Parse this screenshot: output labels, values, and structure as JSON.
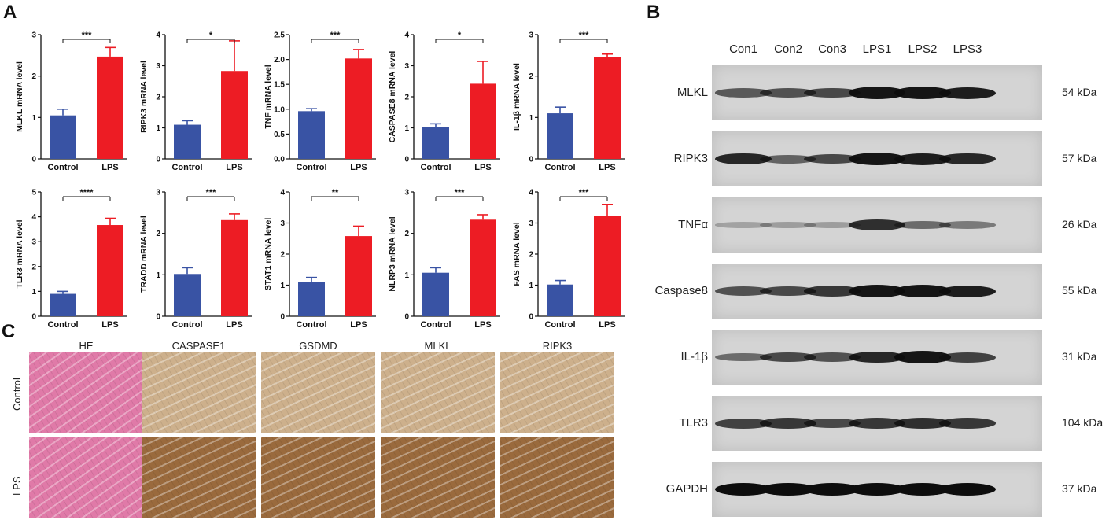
{
  "panels": {
    "a": "A",
    "b": "B",
    "c": "C"
  },
  "colors": {
    "control": "#3953a4",
    "lps": "#ed1c24",
    "he": "#e07aa8",
    "ihc_control": "#cdb08c",
    "ihc_lps": "#9a6a3d"
  },
  "categories": [
    "Control",
    "LPS"
  ],
  "chart_data": [
    {
      "type": "bar",
      "ylabel": "MLKL mRNA level",
      "ylim": [
        0,
        3
      ],
      "yticks": [
        "0",
        "1",
        "2",
        "3"
      ],
      "categories": [
        "Control",
        "LPS"
      ],
      "values": [
        1.05,
        2.47
      ],
      "errors": [
        0.15,
        0.22
      ],
      "significance": "***"
    },
    {
      "type": "bar",
      "ylabel": "RIPK3 mRNA level",
      "ylim": [
        0,
        4
      ],
      "yticks": [
        "0",
        "1",
        "2",
        "3",
        "4"
      ],
      "categories": [
        "Control",
        "LPS"
      ],
      "values": [
        1.1,
        2.83
      ],
      "errors": [
        0.13,
        0.97
      ],
      "significance": "*"
    },
    {
      "type": "bar",
      "ylabel": "TNF mRNA level",
      "ylim": [
        0,
        2.5
      ],
      "yticks": [
        "0.0",
        "0.5",
        "1.0",
        "1.5",
        "2.0",
        "2.5"
      ],
      "categories": [
        "Control",
        "LPS"
      ],
      "values": [
        0.96,
        2.02
      ],
      "errors": [
        0.05,
        0.18
      ],
      "significance": "***"
    },
    {
      "type": "bar",
      "ylabel": "CASPASE8 mRNA level",
      "ylim": [
        0,
        4
      ],
      "yticks": [
        "0",
        "1",
        "2",
        "3",
        "4"
      ],
      "categories": [
        "Control",
        "LPS"
      ],
      "values": [
        1.03,
        2.42
      ],
      "errors": [
        0.1,
        0.72
      ],
      "significance": "*"
    },
    {
      "type": "bar",
      "ylabel": "IL-1β mRNA level",
      "ylim": [
        0,
        3
      ],
      "yticks": [
        "0",
        "1",
        "2",
        "3"
      ],
      "categories": [
        "Control",
        "LPS"
      ],
      "values": [
        1.1,
        2.45
      ],
      "errors": [
        0.15,
        0.08
      ],
      "significance": "***"
    },
    {
      "type": "bar",
      "ylabel": "TLR3 mRNA level",
      "ylim": [
        0,
        5
      ],
      "yticks": [
        "0",
        "1",
        "2",
        "3",
        "4",
        "5"
      ],
      "categories": [
        "Control",
        "LPS"
      ],
      "values": [
        0.9,
        3.67
      ],
      "errors": [
        0.1,
        0.27
      ],
      "significance": "****"
    },
    {
      "type": "bar",
      "ylabel": "TRADD mRNA level",
      "ylim": [
        0,
        3
      ],
      "yticks": [
        "0",
        "1",
        "2",
        "3"
      ],
      "categories": [
        "Control",
        "LPS"
      ],
      "values": [
        1.02,
        2.32
      ],
      "errors": [
        0.15,
        0.15
      ],
      "significance": "***"
    },
    {
      "type": "bar",
      "ylabel": "STAT1 mRNA level",
      "ylim": [
        0,
        4
      ],
      "yticks": [
        "0",
        "1",
        "2",
        "3",
        "4"
      ],
      "categories": [
        "Control",
        "LPS"
      ],
      "values": [
        1.1,
        2.58
      ],
      "errors": [
        0.15,
        0.32
      ],
      "significance": "**"
    },
    {
      "type": "bar",
      "ylabel": "NLRP3 mRNA level",
      "ylim": [
        0,
        3
      ],
      "yticks": [
        "0",
        "1",
        "2",
        "3"
      ],
      "categories": [
        "Control",
        "LPS"
      ],
      "values": [
        1.05,
        2.33
      ],
      "errors": [
        0.12,
        0.12
      ],
      "significance": "***"
    },
    {
      "type": "bar",
      "ylabel": "FAS mRNA level",
      "ylim": [
        0,
        4
      ],
      "yticks": [
        "0",
        "1",
        "2",
        "3",
        "4"
      ],
      "categories": [
        "Control",
        "LPS"
      ],
      "values": [
        1.02,
        3.23
      ],
      "errors": [
        0.13,
        0.37
      ],
      "significance": "***"
    }
  ],
  "western_blot": {
    "lanes": [
      "Con1",
      "Con2",
      "Con3",
      "LPS1",
      "LPS2",
      "LPS3"
    ],
    "proteins": [
      {
        "name": "MLKL",
        "kda": "54 kDa",
        "intensity": [
          0.55,
          0.6,
          0.65,
          0.95,
          0.95,
          0.9
        ]
      },
      {
        "name": "RIPK3",
        "kda": "57 kDa",
        "intensity": [
          0.85,
          0.5,
          0.65,
          0.95,
          0.9,
          0.85
        ]
      },
      {
        "name": "TNFα",
        "kda": "26 kDa",
        "intensity": [
          0.12,
          0.15,
          0.15,
          0.8,
          0.45,
          0.35
        ]
      },
      {
        "name": "Caspase8",
        "kda": "55 kDa",
        "intensity": [
          0.6,
          0.65,
          0.75,
          0.95,
          0.95,
          0.9
        ]
      },
      {
        "name": "IL-1β",
        "kda": "31 kDa",
        "intensity": [
          0.45,
          0.65,
          0.6,
          0.85,
          0.95,
          0.7
        ]
      },
      {
        "name": "TLR3",
        "kda": "104 kDa",
        "intensity": [
          0.7,
          0.75,
          0.65,
          0.75,
          0.8,
          0.75
        ]
      },
      {
        "name": "GAPDH",
        "kda": "37 kDa",
        "intensity": [
          1,
          1,
          1,
          1,
          1,
          1
        ]
      }
    ]
  },
  "ihc": {
    "columns": [
      "HE",
      "CASPASE1",
      "GSDMD",
      "MLKL",
      "RIPK3"
    ],
    "rows": [
      "Control",
      "LPS"
    ]
  }
}
